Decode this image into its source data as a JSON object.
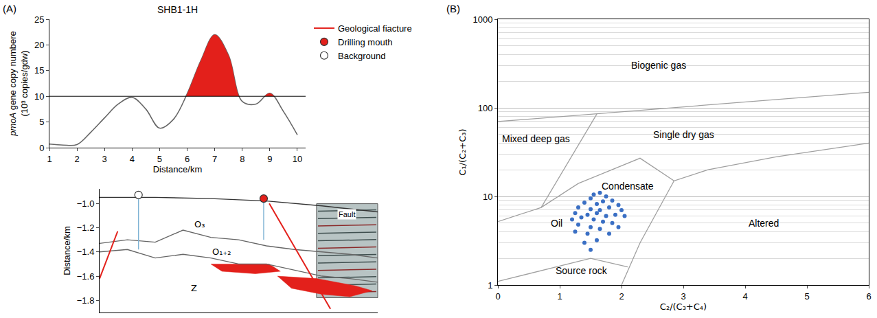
{
  "chart_data": [
    {
      "type": "line",
      "panel": "(A)",
      "title": "SHB1-1H",
      "x_label": "Distance/km",
      "y_label": "pmoA gene copy numbere (10³ copies/gdw)",
      "x": [
        1,
        1.5,
        2,
        2.5,
        3,
        3.5,
        4,
        4.5,
        5,
        5.5,
        6,
        6.5,
        7,
        7.5,
        8,
        8.5,
        9,
        9.5,
        10
      ],
      "series": [
        {
          "color": "#666666",
          "values": [
            0.7,
            0.5,
            0.6,
            3,
            5.8,
            8.5,
            9.8,
            7.5,
            3.8,
            5.5,
            10.5,
            17,
            22,
            18,
            9,
            8.5,
            10.6,
            7,
            2.5
          ]
        }
      ],
      "threshold": 10,
      "color": "#e3201b",
      "xlim": [
        1,
        10.3
      ],
      "xticks": [
        1,
        2,
        3,
        4,
        5,
        6,
        7,
        8,
        9,
        10
      ],
      "ylim": [
        0,
        25
      ],
      "yticks": [
        0,
        5,
        10,
        15,
        20,
        25
      ],
      "grid": false
    },
    {
      "type": "cross_section",
      "y_label": "Distance/km",
      "legend": "right",
      "tick_labels": "y",
      "xlim": [
        0,
        10
      ],
      "ylim": [
        -1.9,
        -0.88
      ],
      "yticks": [
        {
          "value": -1.0,
          "label": "−1.0"
        },
        {
          "value": -1.2,
          "label": "−1.2"
        },
        {
          "value": -1.4,
          "label": "−1.4"
        },
        {
          "value": -1.6,
          "label": "−1.6"
        },
        {
          "value": -1.8,
          "label": "−1.8"
        }
      ],
      "series": [
        {
          "type": "area",
          "color": "#e3201b",
          "x": [
            4.0,
            6.1,
            6.5,
            5.6,
            4.4,
            4.0
          ],
          "values": [
            -1.5,
            -1.5,
            -1.56,
            -1.58,
            -1.56,
            -1.5
          ]
        },
        {
          "type": "area",
          "color": "#e3201b",
          "x": [
            6.4,
            7.8,
            9.2,
            9.8,
            9.0,
            8.0,
            6.9,
            6.4
          ],
          "values": [
            -1.6,
            -1.62,
            -1.68,
            -1.72,
            -1.77,
            -1.75,
            -1.7,
            -1.6
          ]
        },
        {
          "type": "line",
          "color": "#333333",
          "x": [
            0,
            2,
            4,
            6,
            8,
            10
          ],
          "values": [
            -0.95,
            -0.95,
            -0.96,
            -0.98,
            -1.02,
            -1.07
          ]
        },
        {
          "type": "line",
          "color": "#666666",
          "x": [
            0,
            1,
            2,
            3,
            4,
            5,
            6,
            7,
            8,
            9,
            10
          ],
          "values": [
            -1.33,
            -1.3,
            -1.32,
            -1.22,
            -1.28,
            -1.3,
            -1.35,
            -1.38,
            -1.4,
            -1.42,
            -1.45
          ]
        },
        {
          "type": "line",
          "color": "#666666",
          "x": [
            0,
            1,
            2,
            3,
            4,
            5,
            6,
            7,
            8,
            9,
            10
          ],
          "values": [
            -1.4,
            -1.38,
            -1.45,
            -1.42,
            -1.45,
            -1.5,
            -1.5,
            -1.55,
            -1.6,
            -1.62,
            -1.65
          ]
        },
        {
          "type": "line",
          "color": "#7fb3d5",
          "x": [
            1.4,
            1.4
          ],
          "values": [
            -0.95,
            -1.38
          ]
        },
        {
          "type": "line",
          "color": "#7fb3d5",
          "x": [
            5.9,
            5.9
          ],
          "values": [
            -0.98,
            -1.3
          ]
        },
        {
          "type": "line",
          "name": "Geological fiacture",
          "color": "#e3201b",
          "x": [
            0,
            0.65,
            null,
            6.1,
            8.3
          ],
          "values": [
            -1.62,
            -1.23,
            null,
            -1.0,
            -1.87
          ]
        },
        {
          "type": "marker",
          "name": "Drilling mouth",
          "color": "#e3201b",
          "marker": "circle",
          "x": [
            5.9
          ],
          "values": [
            -0.96
          ]
        },
        {
          "type": "marker",
          "name": "Background",
          "color": "#ffffff",
          "marker": "circle",
          "x": [
            1.4
          ],
          "values": [
            -0.93
          ]
        }
      ],
      "annotations": [
        {
          "text": "O₃",
          "x": 3.6,
          "y": -1.17
        },
        {
          "text": "O₁₊₂",
          "x": 4.4,
          "y": -1.4
        },
        {
          "text": "Z",
          "x": 3.4,
          "y": -1.7
        },
        {
          "text": "Fault"
        }
      ]
    },
    {
      "type": "scatter",
      "panel": "(B)",
      "x_label": "C₂/(C₃+C₄)",
      "y_label": "C₁/(C₂+C₃)",
      "log": "y",
      "grid": true,
      "xlim": [
        0,
        6
      ],
      "xticks": [
        0,
        1,
        2,
        3,
        4,
        5,
        6
      ],
      "ylim": [
        1,
        1000
      ],
      "yticks": [
        1,
        10,
        100,
        1000
      ],
      "series": [
        {
          "type": "line",
          "color": "#a0a0a0",
          "x": [
            0,
            6
          ],
          "values": [
            70,
            150
          ]
        },
        {
          "type": "line",
          "color": "#a0a0a0",
          "x": [
            0.7,
            1.6
          ],
          "values": [
            7.5,
            85
          ]
        },
        {
          "type": "line",
          "color": "#a0a0a0",
          "x": [
            0,
            0.7,
            1.3,
            2.3,
            2.85,
            3.4,
            4.5,
            6
          ],
          "values": [
            5.2,
            7.5,
            14,
            27,
            15,
            20,
            28,
            40
          ]
        },
        {
          "type": "line",
          "color": "#a0a0a0",
          "x": [
            2.85,
            2.3,
            2.0
          ],
          "values": [
            15,
            3,
            1
          ]
        },
        {
          "type": "line",
          "color": "#a0a0a0",
          "x": [
            0,
            1.5,
            2.1
          ],
          "values": [
            1.1,
            2.0,
            1.6
          ]
        },
        {
          "type": "scatter",
          "color": "#3a6fc4",
          "marker": "circle",
          "x": [
            1.65,
            1.55,
            1.75,
            1.5,
            1.85,
            1.4,
            1.6,
            1.7,
            1.95,
            1.3,
            1.5,
            1.8,
            1.65,
            2.0,
            1.25,
            1.45,
            1.6,
            1.75,
            1.9,
            2.05,
            1.2,
            1.35,
            1.55,
            1.7,
            1.85,
            1.3,
            1.5,
            1.65,
            1.95,
            1.25,
            1.45,
            1.8,
            1.6,
            1.4,
            1.5
          ],
          "values": [
            11,
            10.5,
            10,
            9.5,
            9,
            8.5,
            8.2,
            8.8,
            8,
            7.5,
            7.2,
            7.5,
            7,
            7,
            6.5,
            6.2,
            6.5,
            6,
            6.2,
            6,
            5.5,
            5.8,
            5.5,
            5.2,
            5,
            4.8,
            4.5,
            4.3,
            4.5,
            4,
            3.8,
            3.8,
            3.2,
            3,
            2.5
          ]
        }
      ],
      "annotations": [
        {
          "text": "Biogenic gas",
          "x": 2.6,
          "y": 300
        },
        {
          "text": "Mixed deep gas",
          "x": 0.62,
          "y": 45
        },
        {
          "text": "Single dry gas",
          "x": 3.0,
          "y": 50
        },
        {
          "text": "Condensate",
          "x": 2.1,
          "y": 13
        },
        {
          "text": "Oil",
          "x": 0.95,
          "y": 5
        },
        {
          "text": "Altered",
          "x": 4.3,
          "y": 5
        },
        {
          "text": "Source rock",
          "x": 1.35,
          "y": 1.45
        }
      ]
    }
  ]
}
